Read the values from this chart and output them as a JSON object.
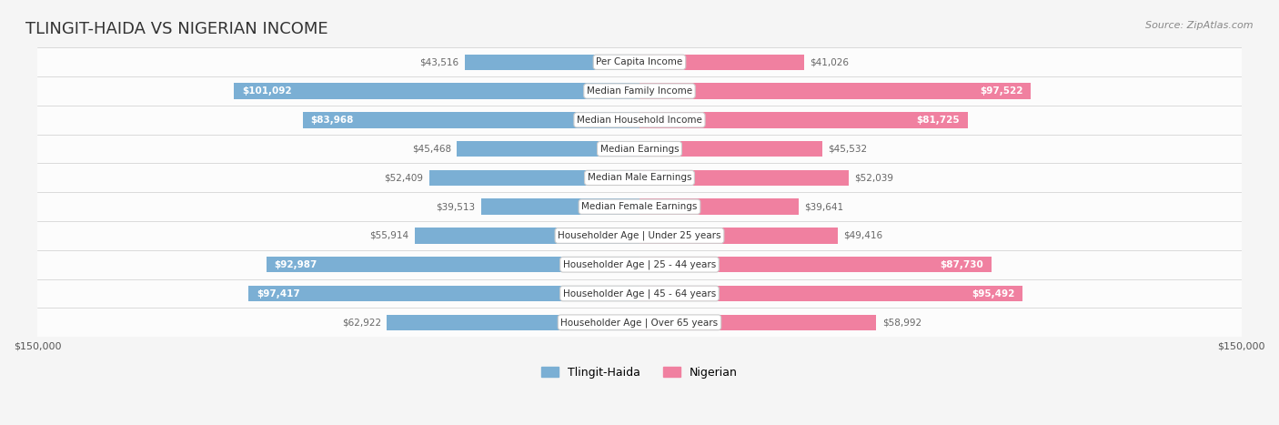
{
  "title": "TLINGIT-HAIDA VS NIGERIAN INCOME",
  "source": "Source: ZipAtlas.com",
  "categories": [
    "Per Capita Income",
    "Median Family Income",
    "Median Household Income",
    "Median Earnings",
    "Median Male Earnings",
    "Median Female Earnings",
    "Householder Age | Under 25 years",
    "Householder Age | 25 - 44 years",
    "Householder Age | 45 - 64 years",
    "Householder Age | Over 65 years"
  ],
  "tlingit_values": [
    43516,
    101092,
    83968,
    45468,
    52409,
    39513,
    55914,
    92987,
    97417,
    62922
  ],
  "nigerian_values": [
    41026,
    97522,
    81725,
    45532,
    52039,
    39641,
    49416,
    87730,
    95492,
    58992
  ],
  "tlingit_labels": [
    "$43,516",
    "$101,092",
    "$83,968",
    "$45,468",
    "$52,409",
    "$39,513",
    "$55,914",
    "$92,987",
    "$97,417",
    "$62,922"
  ],
  "nigerian_labels": [
    "$41,026",
    "$97,522",
    "$81,725",
    "$45,532",
    "$52,039",
    "$39,641",
    "$49,416",
    "$87,730",
    "$95,492",
    "$58,992"
  ],
  "tlingit_color": "#7bafd4",
  "nigerian_color": "#f080a0",
  "tlingit_label_color_inside": "#ffffff",
  "tlingit_label_color_outside": "#888888",
  "nigerian_label_color_inside": "#ffffff",
  "nigerian_label_color_outside": "#888888",
  "max_value": 150000,
  "background_color": "#f5f5f5",
  "row_bg_color": "#f0f0f0",
  "legend_tlingit": "Tlingit-Haida",
  "legend_nigerian": "Nigerian",
  "tlingit_inside_threshold": 70000,
  "nigerian_inside_threshold": 70000
}
